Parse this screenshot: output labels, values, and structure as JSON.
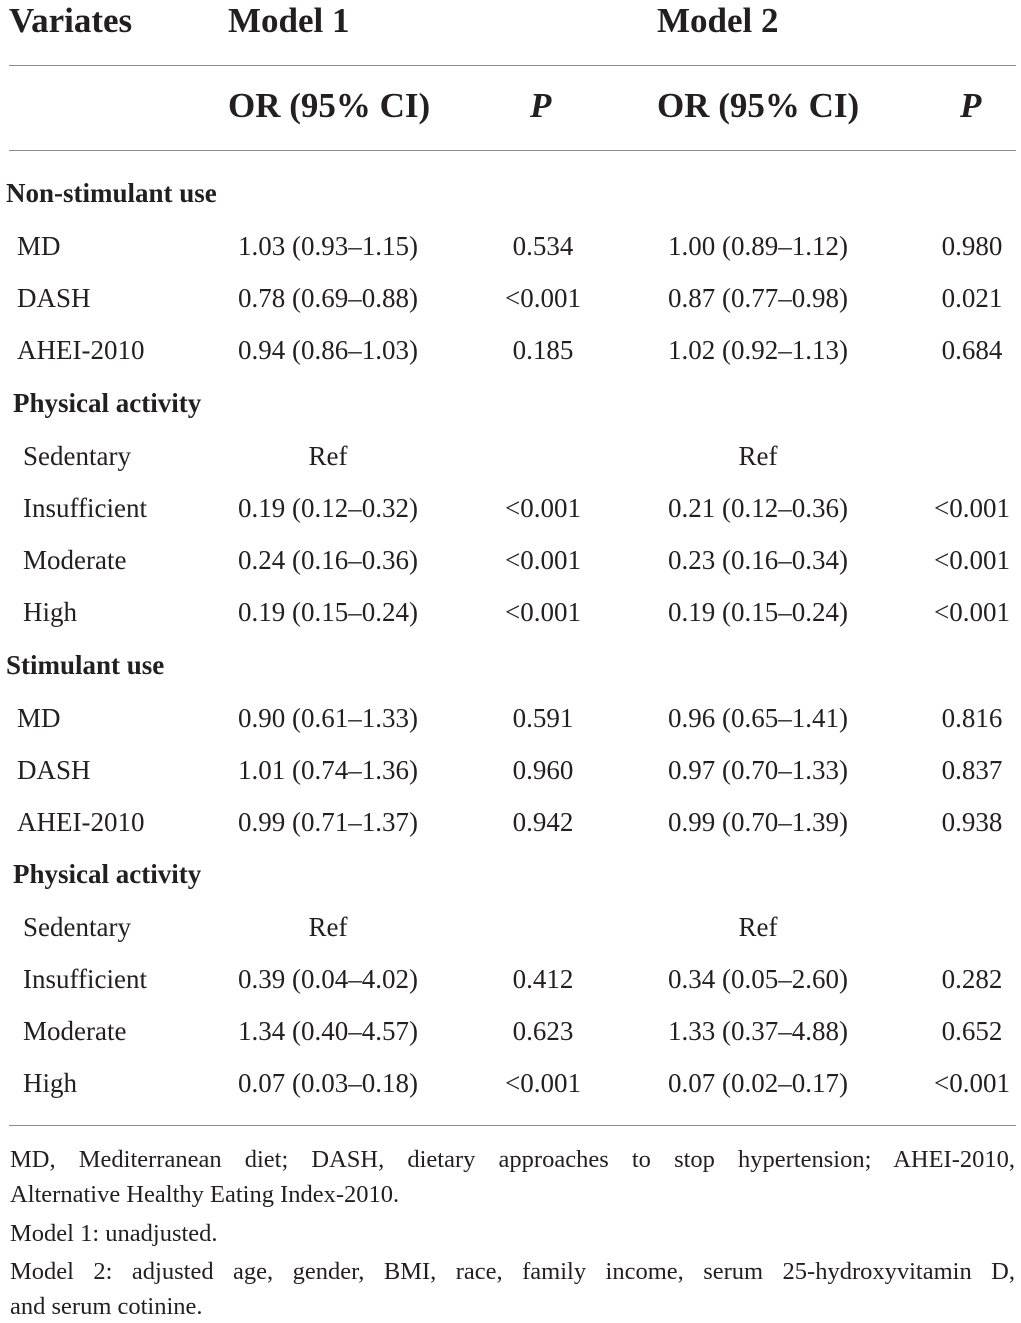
{
  "header": {
    "variates": "Variates",
    "model1": "Model 1",
    "model2": "Model 2",
    "or_label": "OR (95% CI)",
    "p_label": "P"
  },
  "sections": [
    {
      "title": "Non-stimulant use",
      "diet_rows": [
        {
          "label": "MD",
          "or1": "1.03 (0.93–1.15)",
          "p1": "0.534",
          "or2": "1.00 (0.89–1.12)",
          "p2": "0.980"
        },
        {
          "label": "DASH",
          "or1": "0.78 (0.69–0.88)",
          "p1": "<0.001",
          "or2": "0.87 (0.77–0.98)",
          "p2": "0.021"
        },
        {
          "label": "AHEI-2010",
          "or1": "0.94 (0.86–1.03)",
          "p1": "0.185",
          "or2": "1.02 (0.92–1.13)",
          "p2": "0.684"
        }
      ],
      "pa_title": "Physical activity",
      "pa_rows": [
        {
          "label": "Sedentary",
          "or1": "Ref",
          "p1": "",
          "or2": "Ref",
          "p2": ""
        },
        {
          "label": "Insufficient",
          "or1": "0.19 (0.12–0.32)",
          "p1": "<0.001",
          "or2": "0.21 (0.12–0.36)",
          "p2": "<0.001"
        },
        {
          "label": "Moderate",
          "or1": "0.24 (0.16–0.36)",
          "p1": "<0.001",
          "or2": "0.23 (0.16–0.34)",
          "p2": "<0.001"
        },
        {
          "label": "High",
          "or1": "0.19 (0.15–0.24)",
          "p1": "<0.001",
          "or2": "0.19 (0.15–0.24)",
          "p2": "<0.001"
        }
      ]
    },
    {
      "title": "Stimulant use",
      "diet_rows": [
        {
          "label": "MD",
          "or1": "0.90 (0.61–1.33)",
          "p1": "0.591",
          "or2": "0.96 (0.65–1.41)",
          "p2": "0.816"
        },
        {
          "label": "DASH",
          "or1": "1.01 (0.74–1.36)",
          "p1": "0.960",
          "or2": "0.97 (0.70–1.33)",
          "p2": "0.837"
        },
        {
          "label": "AHEI-2010",
          "or1": "0.99 (0.71–1.37)",
          "p1": "0.942",
          "or2": "0.99 (0.70–1.39)",
          "p2": "0.938"
        }
      ],
      "pa_title": "Physical activity",
      "pa_rows": [
        {
          "label": "Sedentary",
          "or1": "Ref",
          "p1": "",
          "or2": "Ref",
          "p2": ""
        },
        {
          "label": "Insufficient",
          "or1": "0.39 (0.04–4.02)",
          "p1": "0.412",
          "or2": "0.34 (0.05–2.60)",
          "p2": "0.282"
        },
        {
          "label": "Moderate",
          "or1": "1.34 (0.40–4.57)",
          "p1": "0.623",
          "or2": "1.33 (0.37–4.88)",
          "p2": "0.652"
        },
        {
          "label": "High",
          "or1": "0.07 (0.03–0.18)",
          "p1": "<0.001",
          "or2": "0.07 (0.02–0.17)",
          "p2": "<0.001"
        }
      ]
    }
  ],
  "footnotes": {
    "abbrev_line1": "MD, Mediterranean diet; DASH, dietary approaches to stop hypertension; AHEI-2010,",
    "abbrev_line2": "Alternative Healthy Eating Index-2010.",
    "model1_note": "Model 1: unadjusted.",
    "model2_line1": "Model 2: adjusted age, gender, BMI, race, family income, serum 25-hydroxyvitamin D,",
    "model2_line2": "and serum cotinine."
  }
}
